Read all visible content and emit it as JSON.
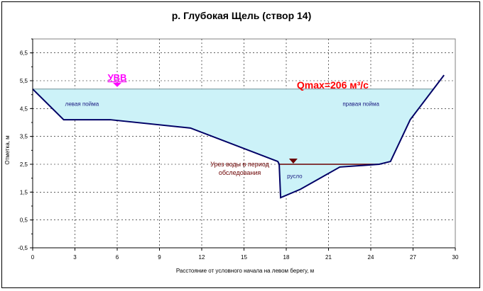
{
  "chart_data": {
    "type": "area",
    "title": "р. Глубокая Щель (створ 14)",
    "xlabel": "Расстояние от условного начала на левом берегу, м",
    "ylabel": "Отметка, м",
    "xlim": [
      0,
      30
    ],
    "ylim": [
      -0.5,
      7
    ],
    "x_ticks": [
      "0",
      "3",
      "6",
      "9",
      "12",
      "15",
      "18",
      "21",
      "24",
      "27",
      "30"
    ],
    "y_ticks": [
      "-0,5",
      "0,5",
      "1,5",
      "2,5",
      "3,5",
      "4,5",
      "5,5",
      "6,5"
    ],
    "grid": true,
    "grid_style": "dashed",
    "series": [
      {
        "type": "line",
        "color": "#000066",
        "x": [
          0,
          2.2,
          5.5,
          11.2,
          17.4,
          17.5,
          17.6,
          19.0,
          21.8,
          24.6,
          25.4,
          26.8,
          29.2
        ],
        "y": [
          5.2,
          4.1,
          4.1,
          3.8,
          2.6,
          2.5,
          1.3,
          1.6,
          2.4,
          2.5,
          2.6,
          4.1,
          5.7
        ]
      }
    ],
    "flood_fill": {
      "level": 5.2,
      "x_start": 0,
      "x_end": 28.4,
      "color": "#ccf2f8"
    },
    "survey_level": {
      "level": 2.5,
      "x_start": 17.5,
      "x_end": 24.6,
      "color": "#6b0000"
    },
    "annotations": {
      "uvv": {
        "text": "УВВ",
        "x": 6.0,
        "y": 5.3,
        "color": "#ff00ff"
      },
      "qmax": {
        "text": "Qmax=206  м³/с",
        "x": 21.3,
        "y": 5.2,
        "color": "#ff0000"
      },
      "left_floodplain": {
        "text": "левая пойма",
        "x": 3.5,
        "y": 4.6
      },
      "right_floodplain": {
        "text": "правая пойма",
        "x": 23.3,
        "y": 4.6
      },
      "channel": {
        "text": "русло",
        "x": 18.6,
        "y": 2.0
      },
      "survey": {
        "line1": "Урез воды в период",
        "line2": "обследования",
        "x": 14.7,
        "y": 2.5,
        "marker_x": 18.5
      }
    }
  }
}
